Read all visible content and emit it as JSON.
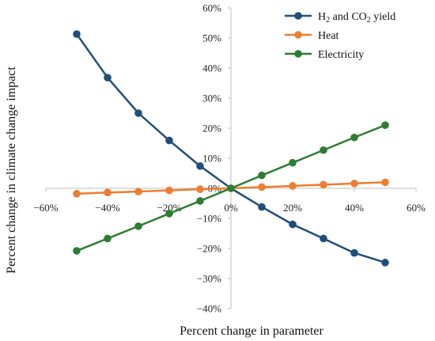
{
  "chart_data": {
    "type": "line",
    "title": "",
    "xlabel": "Percent change in parameter",
    "ylabel": "Percent change in climate change impact",
    "x": [
      -50,
      -40,
      -30,
      -20,
      -10,
      0,
      10,
      20,
      30,
      40,
      50
    ],
    "xlim": [
      -60,
      60
    ],
    "ylim": [
      -40,
      60
    ],
    "x_ticks": [
      -60,
      -40,
      -20,
      0,
      20,
      40,
      60
    ],
    "y_ticks": [
      -40,
      -30,
      -20,
      -10,
      0,
      10,
      20,
      30,
      40,
      50,
      60
    ],
    "x_tick_labels": [
      "−60%",
      "−40%",
      "−20%",
      "0%",
      "20%",
      "40%",
      "60%"
    ],
    "y_tick_labels": [
      "−40%",
      "−30%",
      "−20%",
      "−10%",
      "0%",
      "10%",
      "20%",
      "30%",
      "40%",
      "50%",
      "60%"
    ],
    "grid": false,
    "legend_position": "top-right",
    "series": [
      {
        "name": "H2 and CO2 yield",
        "legend_parts": [
          "H",
          "2",
          " and CO",
          "2",
          " yield"
        ],
        "color": "#1f4e79",
        "values": [
          51.3,
          36.8,
          25.0,
          15.9,
          7.4,
          0,
          -6.2,
          -12.0,
          -16.7,
          -21.5,
          -24.7
        ]
      },
      {
        "name": "Heat",
        "legend_parts": [
          "Heat"
        ],
        "color": "#ed7d31",
        "values": [
          -1.8,
          -1.4,
          -1.1,
          -0.7,
          -0.3,
          0,
          0.4,
          0.8,
          1.2,
          1.6,
          2.0
        ]
      },
      {
        "name": "Electricity",
        "legend_parts": [
          "Electricity"
        ],
        "color": "#2e7d32",
        "values": [
          -20.8,
          -16.7,
          -12.6,
          -8.4,
          -4.2,
          0,
          4.3,
          8.5,
          12.7,
          16.9,
          21.0
        ]
      }
    ]
  }
}
